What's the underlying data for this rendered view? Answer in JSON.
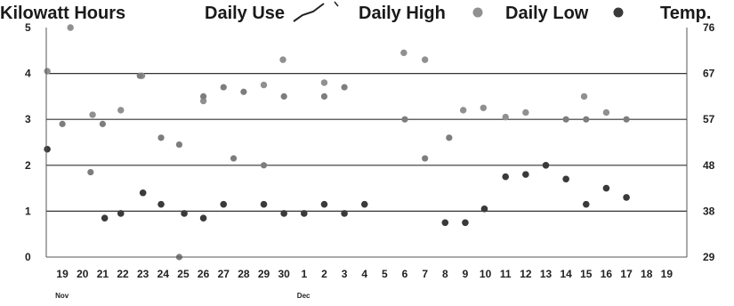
{
  "chart_data": {
    "type": "scatter",
    "legend": {
      "left_axis_title": "Kilowatt Hours",
      "daily_use": "Daily Use",
      "daily_high": "Daily High",
      "daily_low": "Daily Low",
      "right_axis_title": "Temp."
    },
    "left_axis": {
      "ticks": [
        "0",
        "1",
        "2",
        "3",
        "4",
        "5"
      ],
      "ylim": [
        0,
        5
      ]
    },
    "right_axis": {
      "ticks": [
        "29",
        "38",
        "48",
        "57",
        "67",
        "76"
      ],
      "ylim": [
        29,
        76
      ]
    },
    "x_ticks": [
      "19",
      "20",
      "21",
      "22",
      "23",
      "24",
      "25",
      "26",
      "27",
      "28",
      "29",
      "30",
      "1",
      "2",
      "3",
      "4",
      "5",
      "6",
      "7",
      "8",
      "9",
      "10",
      "11",
      "12",
      "13",
      "14",
      "15",
      "16",
      "17",
      "18",
      "19"
    ],
    "x_positions": [
      1,
      2,
      3,
      4,
      5,
      6,
      7,
      8,
      9,
      10,
      11,
      12,
      13,
      14,
      15,
      16,
      17,
      18,
      19,
      20,
      21,
      22,
      23,
      24,
      25,
      26,
      27,
      28,
      29,
      30,
      31
    ],
    "xlim": [
      0.2,
      32
    ],
    "month_labels": [
      {
        "label": "Nov",
        "x": 1
      },
      {
        "label": "Dec",
        "x": 13
      }
    ],
    "grid": {
      "horizontal": true,
      "values": [
        1,
        2,
        3,
        4
      ]
    },
    "colors": {
      "daily_high": "#909090",
      "daily_low": "#3a3a3a",
      "daily_use": "#7d7d7d",
      "grid": "#333333"
    },
    "series": [
      {
        "name": "Daily High",
        "points": [
          {
            "x": 0.25,
            "y": 4.05
          },
          {
            "x": 1.4,
            "y": 5.0
          },
          {
            "x": 2.5,
            "y": 3.1
          },
          {
            "x": 3.9,
            "y": 3.2
          },
          {
            "x": 4.95,
            "y": 3.95
          },
          {
            "x": 8.0,
            "y": 3.4
          },
          {
            "x": 11.0,
            "y": 3.75
          },
          {
            "x": 11.95,
            "y": 4.3
          },
          {
            "x": 14.0,
            "y": 3.8
          },
          {
            "x": 17.95,
            "y": 4.45
          },
          {
            "x": 19.0,
            "y": 4.3
          },
          {
            "x": 20.9,
            "y": 3.2
          },
          {
            "x": 21.9,
            "y": 3.25
          },
          {
            "x": 23.0,
            "y": 3.05
          },
          {
            "x": 24.0,
            "y": 3.15
          },
          {
            "x": 26.9,
            "y": 3.5
          },
          {
            "x": 28.0,
            "y": 3.15
          }
        ]
      },
      {
        "name": "Daily Use",
        "points": [
          {
            "x": 1.0,
            "y": 2.9
          },
          {
            "x": 2.4,
            "y": 1.85
          },
          {
            "x": 3.0,
            "y": 2.9
          },
          {
            "x": 4.85,
            "y": 3.95
          },
          {
            "x": 5.9,
            "y": 2.6
          },
          {
            "x": 6.8,
            "y": 2.45
          },
          {
            "x": 6.8,
            "y": 0.0
          },
          {
            "x": 8.0,
            "y": 3.5
          },
          {
            "x": 9.0,
            "y": 3.7
          },
          {
            "x": 9.5,
            "y": 2.15
          },
          {
            "x": 10.0,
            "y": 3.6
          },
          {
            "x": 11.0,
            "y": 2.0
          },
          {
            "x": 12.0,
            "y": 3.5
          },
          {
            "x": 14.0,
            "y": 3.5
          },
          {
            "x": 15.0,
            "y": 3.7
          },
          {
            "x": 18.0,
            "y": 3.0
          },
          {
            "x": 19.0,
            "y": 2.15
          },
          {
            "x": 20.2,
            "y": 2.6
          },
          {
            "x": 25.0,
            "y": 2.0
          },
          {
            "x": 26.0,
            "y": 3.0
          },
          {
            "x": 27.0,
            "y": 3.0
          },
          {
            "x": 29.0,
            "y": 3.0
          }
        ]
      },
      {
        "name": "Daily Low",
        "points": [
          {
            "x": 0.25,
            "y": 2.35
          },
          {
            "x": 3.1,
            "y": 0.85
          },
          {
            "x": 3.9,
            "y": 0.95
          },
          {
            "x": 5.0,
            "y": 1.4
          },
          {
            "x": 5.9,
            "y": 1.15
          },
          {
            "x": 7.05,
            "y": 0.95
          },
          {
            "x": 8.0,
            "y": 0.85
          },
          {
            "x": 9.0,
            "y": 1.15
          },
          {
            "x": 11.0,
            "y": 1.15
          },
          {
            "x": 12.0,
            "y": 0.95
          },
          {
            "x": 13.0,
            "y": 0.95
          },
          {
            "x": 14.0,
            "y": 1.15
          },
          {
            "x": 15.0,
            "y": 0.95
          },
          {
            "x": 16.0,
            "y": 1.15
          },
          {
            "x": 20.0,
            "y": 0.75
          },
          {
            "x": 21.0,
            "y": 0.75
          },
          {
            "x": 21.95,
            "y": 1.05
          },
          {
            "x": 23.0,
            "y": 1.75
          },
          {
            "x": 24.0,
            "y": 1.8
          },
          {
            "x": 25.0,
            "y": 2.0
          },
          {
            "x": 26.0,
            "y": 1.7
          },
          {
            "x": 27.0,
            "y": 1.15
          },
          {
            "x": 28.0,
            "y": 1.5
          },
          {
            "x": 29.0,
            "y": 1.3
          }
        ]
      }
    ]
  }
}
